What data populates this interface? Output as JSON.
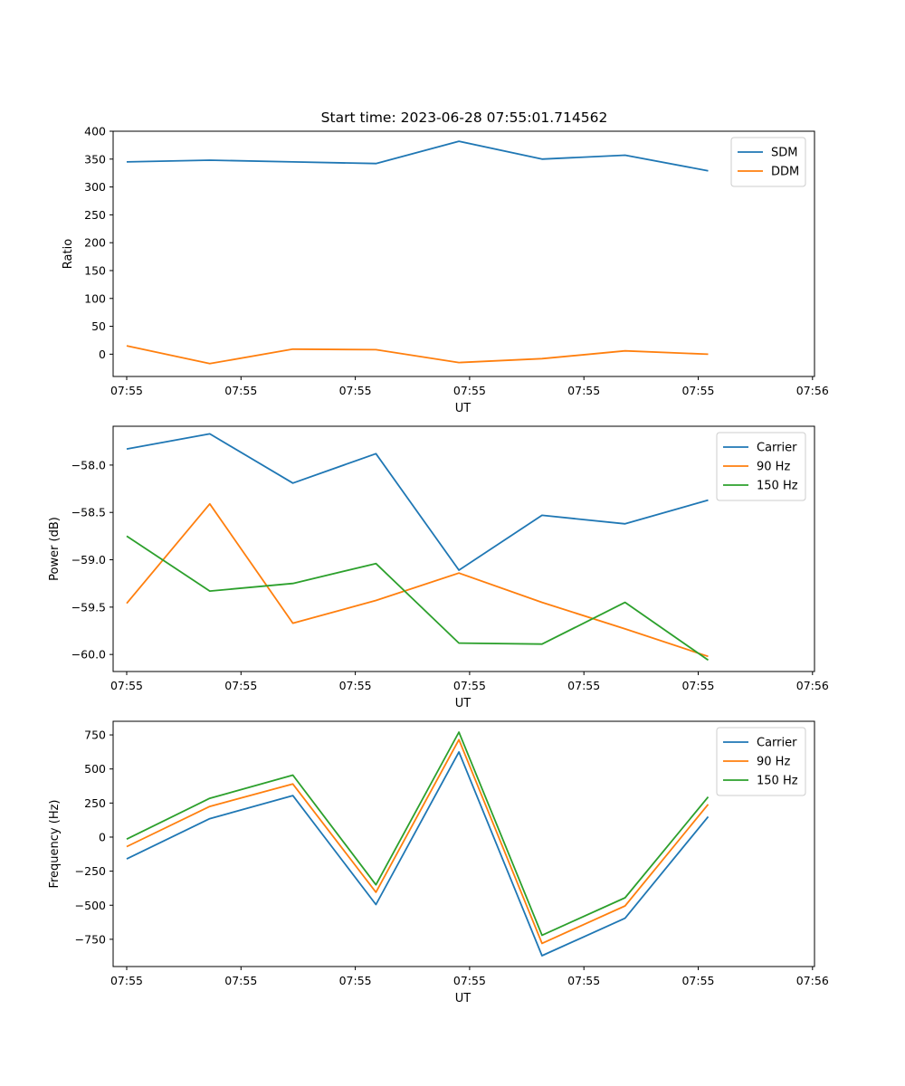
{
  "title": "Start time: 2023-06-28 07:55:01.714562",
  "chart_data": [
    {
      "type": "line",
      "xlabel": "UT",
      "ylabel": "Ratio",
      "xticks": [
        "07:55",
        "07:55",
        "07:55",
        "07:55",
        "07:55",
        "07:55",
        "07:56"
      ],
      "ylim": [
        -40,
        400
      ],
      "yticks": [
        0,
        50,
        100,
        150,
        200,
        250,
        300,
        350,
        400
      ],
      "legend": "top-right",
      "x": [
        1,
        2,
        3,
        4,
        5,
        6,
        7,
        8
      ],
      "series": [
        {
          "name": "SDM",
          "color": "#1f77b4",
          "values": [
            345,
            348,
            345,
            342,
            382,
            350,
            357,
            329
          ]
        },
        {
          "name": "DDM",
          "color": "#ff7f0e",
          "values": [
            15,
            -17,
            9,
            8,
            -15,
            -8,
            6,
            0
          ]
        }
      ]
    },
    {
      "type": "line",
      "xlabel": "UT",
      "ylabel": "Power (dB)",
      "xticks": [
        "07:55",
        "07:55",
        "07:55",
        "07:55",
        "07:55",
        "07:55",
        "07:56"
      ],
      "ylim": [
        -60.18,
        -57.59
      ],
      "yticks": [
        -58.0,
        -58.5,
        -59.0,
        -59.5,
        -60.0
      ],
      "ytick_labels": [
        "−58.0",
        "−58.5",
        "−59.0",
        "−59.5",
        "−60.0"
      ],
      "legend": "top-right",
      "x": [
        1,
        2,
        3,
        4,
        5,
        6,
        7,
        8
      ],
      "series": [
        {
          "name": "Carrier",
          "color": "#1f77b4",
          "values": [
            -57.83,
            -57.67,
            -58.19,
            -57.88,
            -59.11,
            -58.53,
            -58.62,
            -58.37
          ]
        },
        {
          "name": "90 Hz",
          "color": "#ff7f0e",
          "values": [
            -59.46,
            -58.41,
            -59.67,
            -59.43,
            -59.14,
            -59.45,
            -59.73,
            -60.02
          ]
        },
        {
          "name": "150 Hz",
          "color": "#2ca02c",
          "values": [
            -58.75,
            -59.33,
            -59.25,
            -59.04,
            -59.88,
            -59.89,
            -59.45,
            -60.06
          ]
        }
      ]
    },
    {
      "type": "line",
      "xlabel": "UT",
      "ylabel": "Frequency (Hz)",
      "xticks": [
        "07:55",
        "07:55",
        "07:55",
        "07:55",
        "07:55",
        "07:55",
        "07:56"
      ],
      "ylim": [
        -950,
        850
      ],
      "yticks": [
        750,
        500,
        250,
        0,
        -250,
        -500,
        -750
      ],
      "ytick_labels": [
        "750",
        "500",
        "250",
        "0",
        "−250",
        "−500",
        "−750"
      ],
      "legend": "top-right",
      "x": [
        1,
        2,
        3,
        4,
        5,
        6,
        7,
        8
      ],
      "series": [
        {
          "name": "Carrier",
          "color": "#1f77b4",
          "values": [
            -160,
            135,
            305,
            -495,
            625,
            -870,
            -595,
            150
          ]
        },
        {
          "name": "90 Hz",
          "color": "#ff7f0e",
          "values": [
            -70,
            225,
            390,
            -405,
            715,
            -780,
            -505,
            240
          ]
        },
        {
          "name": "150 Hz",
          "color": "#2ca02c",
          "values": [
            -15,
            285,
            455,
            -350,
            770,
            -720,
            -445,
            295
          ]
        }
      ]
    }
  ]
}
